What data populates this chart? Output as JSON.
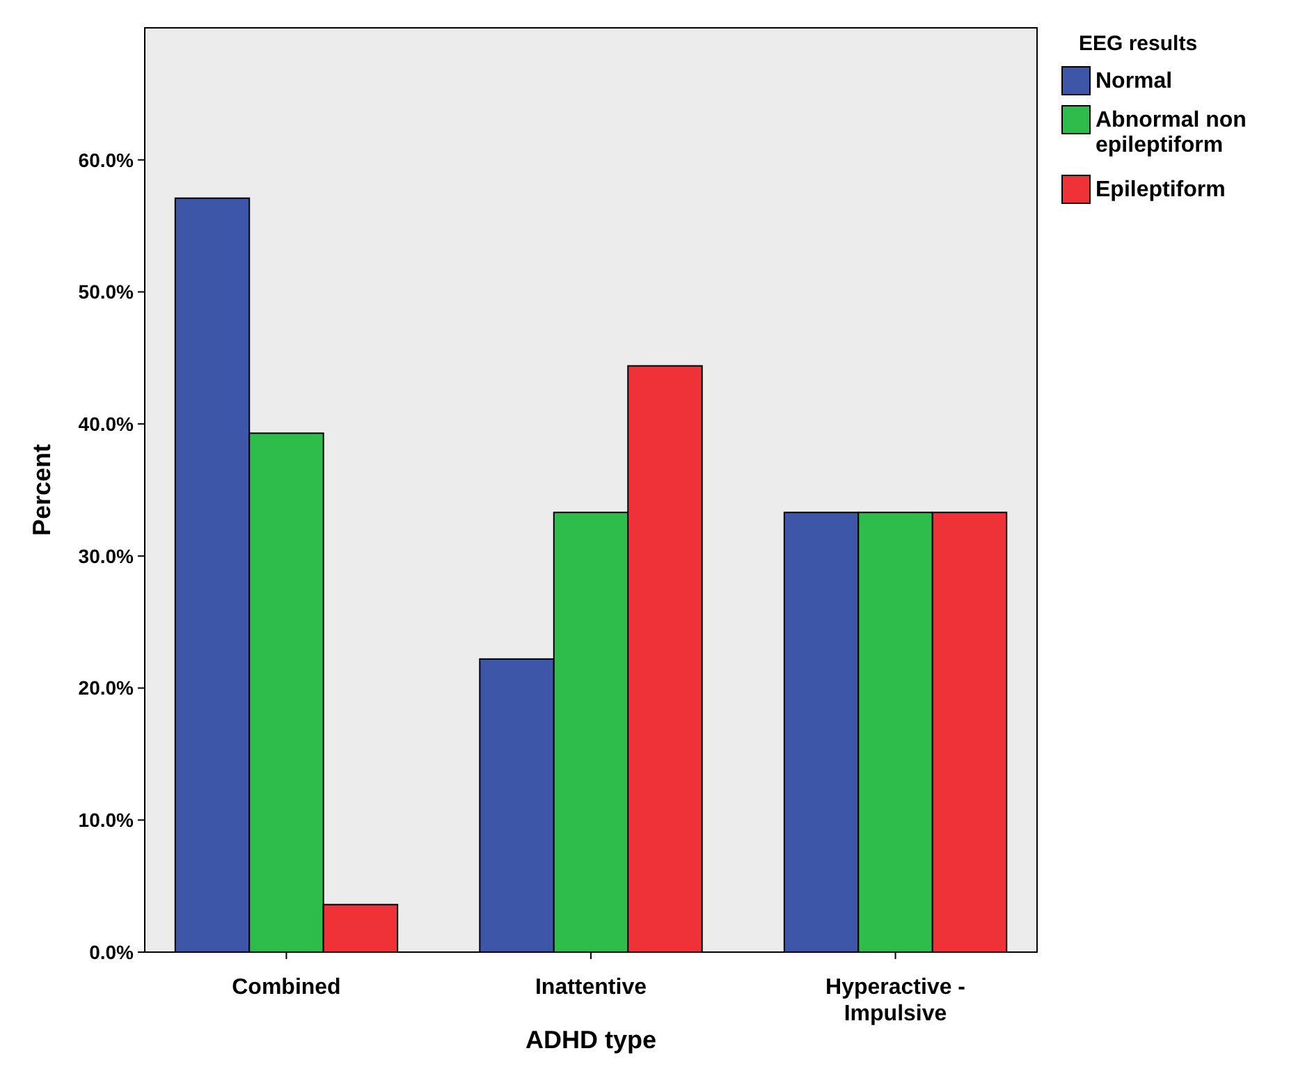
{
  "chart_data": {
    "type": "bar",
    "xlabel": "ADHD type",
    "ylabel": "Percent",
    "legend_title": "EEG results",
    "legend": "top right",
    "grid": false,
    "categories": [
      "Combined",
      "Inattentive",
      "Hyperactive - Impulsive"
    ],
    "ylim": [
      0,
      70
    ],
    "yticks": [
      {
        "value": 0,
        "label": "0.0%"
      },
      {
        "value": 10,
        "label": "10.0%"
      },
      {
        "value": 20,
        "label": "20.0%"
      },
      {
        "value": 30,
        "label": "30.0%"
      },
      {
        "value": 40,
        "label": "40.0%"
      },
      {
        "value": 50,
        "label": "50.0%"
      },
      {
        "value": 60,
        "label": "60.0%"
      }
    ],
    "series": [
      {
        "name": "Normal",
        "color": "#3d56a8",
        "values": [
          57.1,
          22.2,
          33.3
        ]
      },
      {
        "name": "Abnormal non epileptiform",
        "color": "#2ebc4a",
        "values": [
          39.3,
          33.3,
          33.3
        ]
      },
      {
        "name": "Epileptiform",
        "color": "#ef3237",
        "values": [
          3.6,
          44.4,
          33.3
        ]
      }
    ]
  }
}
